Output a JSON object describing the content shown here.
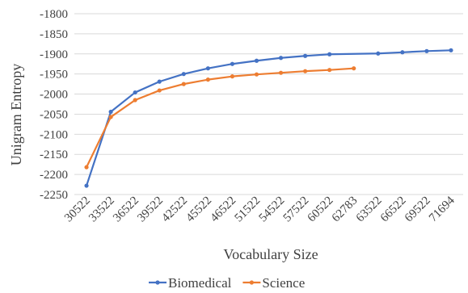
{
  "chart_data": {
    "type": "line",
    "xlabel": "Vocabulary Size",
    "ylabel": "Unigram Entropy",
    "ylim": [
      -2250,
      -1800
    ],
    "y_ticks": [
      -1800,
      -1850,
      -1900,
      -1950,
      -2000,
      -2050,
      -2100,
      -2150,
      -2200,
      -2250
    ],
    "y_tick_labels": [
      "-1800",
      "-1850",
      "-1900",
      "-1950",
      "-2000",
      "-2050",
      "-2100",
      "-2150",
      "-2200",
      "-2250"
    ],
    "grid": true,
    "legend_position": "bottom",
    "categories": [
      "30522",
      "33522",
      "36522",
      "39522",
      "42522",
      "45522",
      "46522",
      "51522",
      "54522",
      "57522",
      "60522",
      "62783",
      "63522",
      "66522",
      "69522",
      "71694"
    ],
    "series": [
      {
        "name": "Biomedical",
        "color": "#4472c4",
        "values": [
          -2228,
          -2044,
          -1996,
          -1969,
          -1950,
          -1936,
          -1925,
          -1917,
          -1910,
          -1905,
          -1901,
          null,
          -1899,
          -1896,
          -1893,
          -1891
        ]
      },
      {
        "name": "Science",
        "color": "#ed7d31",
        "values": [
          -2182,
          -2057,
          -2015,
          -1991,
          -1975,
          -1964,
          -1956,
          -1951,
          -1947,
          -1943,
          -1940,
          -1936,
          null,
          null,
          null,
          null
        ]
      }
    ]
  }
}
